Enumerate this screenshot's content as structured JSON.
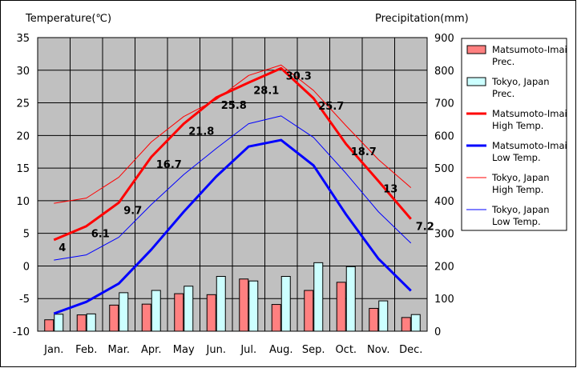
{
  "chart_data": {
    "type": "bar+line",
    "categories": [
      "Jan.",
      "Feb.",
      "Mar.",
      "Apr.",
      "May",
      "Jun.",
      "Jul.",
      "Aug.",
      "Sep.",
      "Oct.",
      "Nov.",
      "Dec."
    ],
    "left_axis": {
      "label": "Temperature(℃)",
      "ylim": [
        -10,
        35
      ],
      "ticks": [
        "35",
        "30",
        "25",
        "20",
        "15",
        "10",
        "5",
        "0",
        "-5",
        "-10"
      ]
    },
    "right_axis": {
      "label": "Precipitation(mm)",
      "ylim": [
        0,
        900
      ],
      "ticks": [
        "900",
        "800",
        "700",
        "600",
        "500",
        "400",
        "300",
        "200",
        "100",
        "0"
      ]
    },
    "grid": true,
    "legend_position": "right",
    "bar_series": [
      {
        "name": "Matsumoto-Imai Prec.",
        "legend": [
          "Matsumoto-Imai",
          "Prec."
        ],
        "color": "#ff8080",
        "axis": "right",
        "values": [
          35,
          50,
          80,
          83,
          115,
          112,
          160,
          82,
          125,
          150,
          70,
          42
        ]
      },
      {
        "name": "Tokyo, Japan Prec.",
        "legend": [
          "Tokyo, Japan",
          "Prec."
        ],
        "color": "#ccffff",
        "axis": "right",
        "values": [
          52,
          53,
          118,
          125,
          138,
          168,
          154,
          168,
          210,
          198,
          93,
          51
        ]
      }
    ],
    "line_series": [
      {
        "name": "Matsumoto-Imai High Temp.",
        "legend": [
          "Matsumoto-Imai",
          "High Temp."
        ],
        "color": "#ff0000",
        "width": 3,
        "axis": "left",
        "values": [
          4,
          6.1,
          9.7,
          16.7,
          21.8,
          25.8,
          28.1,
          30.3,
          25.7,
          18.7,
          13,
          7.2
        ],
        "labels": [
          "4",
          "6.1",
          "9.7",
          "16.7",
          "21.8",
          "25.8",
          "28.1",
          "30.3",
          "25.7",
          "18.7",
          "13",
          "7.2"
        ]
      },
      {
        "name": "Matsumoto-Imai Low Temp.",
        "legend": [
          "Matsumoto-Imai",
          "Low Temp."
        ],
        "color": "#0000ff",
        "width": 3,
        "axis": "left",
        "values": [
          -7.3,
          -5.5,
          -2.7,
          2.5,
          8.3,
          13.7,
          18.3,
          19.3,
          15.4,
          7.9,
          1.1,
          -3.8
        ]
      },
      {
        "name": "Tokyo, Japan High Temp.",
        "legend": [
          "Tokyo, Japan",
          "High Temp."
        ],
        "color": "#ff0000",
        "width": 1,
        "axis": "left",
        "values": [
          9.6,
          10.4,
          13.6,
          19.0,
          22.9,
          25.5,
          29.2,
          30.8,
          26.9,
          21.5,
          16.3,
          12.0
        ]
      },
      {
        "name": "Tokyo, Japan Low Temp.",
        "legend": [
          "Tokyo, Japan",
          "Low Temp."
        ],
        "color": "#0000ff",
        "width": 1,
        "axis": "left",
        "values": [
          0.9,
          1.7,
          4.4,
          9.4,
          14.0,
          18.0,
          21.8,
          23.0,
          19.7,
          14.2,
          8.3,
          3.5
        ]
      }
    ]
  }
}
